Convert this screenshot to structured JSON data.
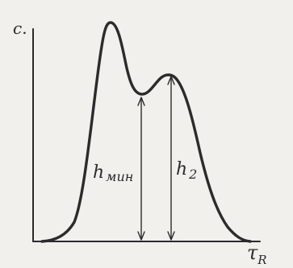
{
  "figure": {
    "y_axis_label": "c.",
    "x_axis_label_main": "τ",
    "x_axis_label_sub": "R",
    "h_min_label_main": "h",
    "h_min_label_sub": "мин",
    "h2_label_main": "h",
    "h2_label_sub": "2"
  },
  "colors": {
    "ink": "#2b2b2b",
    "paper": "#f1f0ec"
  }
}
